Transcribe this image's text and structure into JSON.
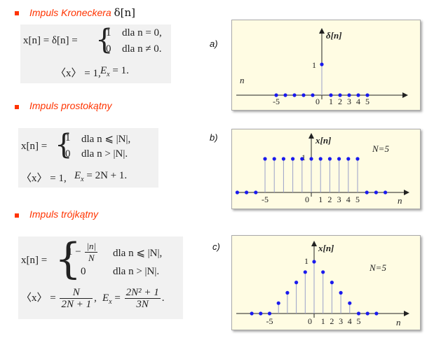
{
  "sections": [
    {
      "title": "Impuls Kroneckera",
      "title_symbol": "δ[n]",
      "formula_lhs": "x[n] = δ[n] =",
      "case1_val": "1",
      "case1_cond": "dla  n = 0,",
      "case2_val": "0",
      "case2_cond": "dla  n ≠ 0.",
      "mean": "〈x〉 = 1,",
      "energy": "E",
      "energy_sub": "x",
      "energy_rhs": " = 1."
    },
    {
      "title": "Impuls prostokątny",
      "formula_lhs": "x[n] =",
      "case1_val": "1",
      "case1_cond": "dla  n ⩽ |N|,",
      "case2_val": "0",
      "case2_cond": "dla  n > |N|.",
      "mean": "〈x〉 = 1,",
      "energy": "E",
      "energy_sub": "x",
      "energy_rhs": " = 2N + 1."
    },
    {
      "title": "Impuls trójkątny",
      "formula_lhs": "x[n] =",
      "case1_val_pre": "1 −",
      "case1_frac_num": "|n|",
      "case1_frac_den": "N",
      "case1_cond": "dla  n ⩽ |N|,",
      "case2_val": "0",
      "case2_cond": "dla  n > |N|.",
      "mean_lhs": "〈x〉 =",
      "mean_num": "N",
      "mean_den": "2N + 1",
      "mean_tail": ",",
      "energy": "E",
      "energy_sub": "x",
      "energy_eq": " =",
      "energy_num": "2N² + 1",
      "energy_den": "3N",
      "energy_tail": "."
    }
  ],
  "plots": [
    {
      "label": "a)",
      "ylabel": "δ[n]",
      "xlabel": "n",
      "one_label": "1",
      "ticks": [
        "-5",
        "0",
        "1",
        "2",
        "3",
        "4",
        "5"
      ],
      "N_label": "",
      "points": [
        [
          -5,
          0
        ],
        [
          -4,
          0
        ],
        [
          -3,
          0
        ],
        [
          -2,
          0
        ],
        [
          -1,
          0
        ],
        [
          0,
          1
        ],
        [
          1,
          0
        ],
        [
          2,
          0
        ],
        [
          3,
          0
        ],
        [
          4,
          0
        ],
        [
          5,
          0
        ]
      ]
    },
    {
      "label": "b)",
      "ylabel": "x[n]",
      "xlabel": "n",
      "one_label": "1",
      "ticks": [
        "-5",
        "0",
        "1",
        "2",
        "3",
        "4",
        "5"
      ],
      "N_label": "N=5",
      "points": [
        [
          -8,
          0
        ],
        [
          -7,
          0
        ],
        [
          -6,
          0
        ],
        [
          -5,
          1
        ],
        [
          -4,
          1
        ],
        [
          -3,
          1
        ],
        [
          -2,
          1
        ],
        [
          -1,
          1
        ],
        [
          0,
          1
        ],
        [
          1,
          1
        ],
        [
          2,
          1
        ],
        [
          3,
          1
        ],
        [
          4,
          1
        ],
        [
          5,
          1
        ],
        [
          6,
          0
        ],
        [
          7,
          0
        ],
        [
          8,
          0
        ]
      ]
    },
    {
      "label": "c)",
      "ylabel": "x[n]",
      "xlabel": "n",
      "one_label": "1",
      "ticks": [
        "-5",
        "0",
        "1",
        "2",
        "3",
        "4",
        "5"
      ],
      "N_label": "N=5",
      "points": [
        [
          -7,
          0
        ],
        [
          -6,
          0
        ],
        [
          -5,
          0
        ],
        [
          -4,
          0.2
        ],
        [
          -3,
          0.4
        ],
        [
          -2,
          0.6
        ],
        [
          -1,
          0.8
        ],
        [
          0,
          1
        ],
        [
          1,
          0.8
        ],
        [
          2,
          0.6
        ],
        [
          3,
          0.4
        ],
        [
          4,
          0.2
        ],
        [
          5,
          0
        ],
        [
          6,
          0
        ],
        [
          7,
          0
        ]
      ]
    }
  ],
  "colors": {
    "title": "#ff3300",
    "dot": "#1a1aee",
    "stem": "#9aa0c8",
    "axis": "#222222",
    "plot_bg": "#fffce3"
  }
}
